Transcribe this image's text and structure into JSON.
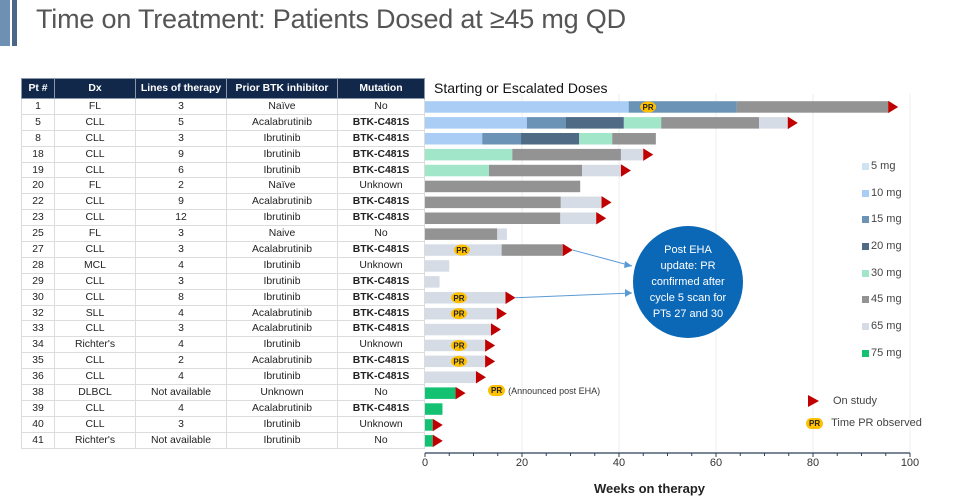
{
  "slide": {
    "title": "Time on Treatment: Patients Dosed at ≥45 mg QD"
  },
  "table": {
    "headers": [
      "Pt #",
      "Dx",
      "Lines of therapy",
      "Prior BTK inhibitor",
      "Mutation"
    ],
    "rows": [
      [
        "1",
        "FL",
        "3",
        "Naïve",
        "No"
      ],
      [
        "5",
        "CLL",
        "5",
        "Acalabrutinib",
        "BTK-C481S"
      ],
      [
        "8",
        "CLL",
        "3",
        "Ibrutinib",
        "BTK-C481S"
      ],
      [
        "18",
        "CLL",
        "9",
        "Ibrutinib",
        "BTK-C481S"
      ],
      [
        "19",
        "CLL",
        "6",
        "Ibrutinib",
        "BTK-C481S"
      ],
      [
        "20",
        "FL",
        "2",
        "Naïve",
        "Unknown"
      ],
      [
        "22",
        "CLL",
        "9",
        "Acalabrutinib",
        "BTK-C481S"
      ],
      [
        "23",
        "CLL",
        "12",
        "Ibrutinib",
        "BTK-C481S"
      ],
      [
        "25",
        "FL",
        "3",
        "Naive",
        "No"
      ],
      [
        "27",
        "CLL",
        "3",
        "Acalabrutinib",
        "BTK-C481S"
      ],
      [
        "28",
        "MCL",
        "4",
        "Ibrutinib",
        "Unknown"
      ],
      [
        "29",
        "CLL",
        "3",
        "Ibrutinib",
        "BTK-C481S"
      ],
      [
        "30",
        "CLL",
        "8",
        "Ibrutinib",
        "BTK-C481S"
      ],
      [
        "32",
        "SLL",
        "4",
        "Acalabrutinib",
        "BTK-C481S"
      ],
      [
        "33",
        "CLL",
        "3",
        "Acalabrutinib",
        "BTK-C481S"
      ],
      [
        "34",
        "Richter's",
        "4",
        "Ibrutinib",
        "Unknown"
      ],
      [
        "35",
        "CLL",
        "2",
        "Acalabrutinib",
        "BTK-C481S"
      ],
      [
        "36",
        "CLL",
        "4",
        "Ibrutinib",
        "BTK-C481S"
      ],
      [
        "38",
        "DLBCL",
        "Not available",
        "Unknown",
        "No"
      ],
      [
        "39",
        "CLL",
        "4",
        "Acalabrutinib",
        "BTK-C481S"
      ],
      [
        "40",
        "CLL",
        "3",
        "Ibrutinib",
        "Unknown"
      ],
      [
        "41",
        "Richter's",
        "Not available",
        "Ibrutinib",
        "No"
      ]
    ]
  },
  "annotations": {
    "callout": "Post EHA update: PR confirmed after cycle 5 scan for PTs 27 and 30",
    "announced": "(Announced post EHA)",
    "pr_label": "PR"
  },
  "chart_data": {
    "type": "bar",
    "orientation": "horizontal-stacked",
    "title": "Starting or Escalated Doses",
    "xlabel": "Weeks on therapy",
    "ylabel": "",
    "xlim": [
      0,
      100
    ],
    "xticks": [
      0,
      20,
      40,
      60,
      80,
      100
    ],
    "grid": true,
    "legend_placement": "right",
    "doses": [
      {
        "name": "5 mg",
        "color": "#cfe3f3"
      },
      {
        "name": "10 mg",
        "color": "#a9cdf5"
      },
      {
        "name": "15 mg",
        "color": "#6b93b5"
      },
      {
        "name": "20 mg",
        "color": "#4e6a85"
      },
      {
        "name": "30 mg",
        "color": "#a2e6c9"
      },
      {
        "name": "45 mg",
        "color": "#939393"
      },
      {
        "name": "65 mg",
        "color": "#d6dce5"
      },
      {
        "name": "75 mg",
        "color": "#12c172"
      }
    ],
    "markers": {
      "on_study": {
        "label": "On study",
        "color": "#c00000"
      },
      "pr": {
        "label": "Time PR observed",
        "color": "#ffc000"
      }
    },
    "patients": [
      {
        "pt": "1",
        "segments": [
          [
            "10 mg",
            0,
            42
          ],
          [
            "15 mg",
            42,
            64.3
          ],
          [
            "45 mg",
            64.3,
            95.5
          ]
        ],
        "on_study": true,
        "pr_week": 46
      },
      {
        "pt": "5",
        "segments": [
          [
            "10 mg",
            0,
            21
          ],
          [
            "15 mg",
            21,
            29
          ],
          [
            "20 mg",
            29,
            41
          ],
          [
            "30 mg",
            41,
            48.7
          ],
          [
            "45 mg",
            48.7,
            68.9
          ],
          [
            "65 mg",
            68.9,
            74.8
          ]
        ],
        "on_study": true,
        "pr_week": null
      },
      {
        "pt": "8",
        "segments": [
          [
            "10 mg",
            0,
            11.8
          ],
          [
            "15 mg",
            11.8,
            19.8
          ],
          [
            "20 mg",
            19.8,
            31.8
          ],
          [
            "30 mg",
            31.8,
            38.6
          ],
          [
            "45 mg",
            38.6,
            47.6
          ]
        ],
        "on_study": false,
        "pr_week": null
      },
      {
        "pt": "18",
        "segments": [
          [
            "30 mg",
            0,
            18
          ],
          [
            "45 mg",
            18,
            40.4
          ],
          [
            "65 mg",
            40.4,
            45
          ]
        ],
        "on_study": true,
        "pr_week": null
      },
      {
        "pt": "19",
        "segments": [
          [
            "30 mg",
            0,
            13.2
          ],
          [
            "45 mg",
            13.2,
            32.4
          ],
          [
            "65 mg",
            32.4,
            40.4
          ]
        ],
        "on_study": true,
        "pr_week": null
      },
      {
        "pt": "20",
        "segments": [
          [
            "45 mg",
            0,
            32
          ]
        ],
        "on_study": false,
        "pr_week": null
      },
      {
        "pt": "22",
        "segments": [
          [
            "45 mg",
            0,
            28
          ],
          [
            "65 mg",
            28,
            36.4
          ]
        ],
        "on_study": true,
        "pr_week": null
      },
      {
        "pt": "23",
        "segments": [
          [
            "45 mg",
            0,
            27.9
          ],
          [
            "65 mg",
            27.9,
            35.3
          ]
        ],
        "on_study": true,
        "pr_week": null
      },
      {
        "pt": "25",
        "segments": [
          [
            "45 mg",
            0,
            14.9
          ],
          [
            "65 mg",
            14.9,
            16.9
          ]
        ],
        "on_study": false,
        "pr_week": null
      },
      {
        "pt": "27",
        "segments": [
          [
            "65 mg",
            0,
            15.8
          ],
          [
            "45 mg",
            15.8,
            28.4
          ]
        ],
        "on_study": true,
        "pr_week": 7.6
      },
      {
        "pt": "28",
        "segments": [
          [
            "65 mg",
            0,
            5
          ]
        ],
        "on_study": false,
        "pr_week": null
      },
      {
        "pt": "29",
        "segments": [
          [
            "65 mg",
            0,
            3
          ]
        ],
        "on_study": false,
        "pr_week": null
      },
      {
        "pt": "30",
        "segments": [
          [
            "65 mg",
            0,
            16.6
          ]
        ],
        "on_study": true,
        "pr_week": 7
      },
      {
        "pt": "32",
        "segments": [
          [
            "65 mg",
            0,
            14.8
          ]
        ],
        "on_study": true,
        "pr_week": 7
      },
      {
        "pt": "33",
        "segments": [
          [
            "65 mg",
            0,
            13.6
          ]
        ],
        "on_study": true,
        "pr_week": null
      },
      {
        "pt": "34",
        "segments": [
          [
            "65 mg",
            0,
            12.4
          ]
        ],
        "on_study": true,
        "pr_week": 7
      },
      {
        "pt": "35",
        "segments": [
          [
            "65 mg",
            0,
            12.4
          ]
        ],
        "on_study": true,
        "pr_week": 7
      },
      {
        "pt": "36",
        "segments": [
          [
            "65 mg",
            0,
            10.5
          ]
        ],
        "on_study": true,
        "pr_week": null
      },
      {
        "pt": "38",
        "segments": [
          [
            "75 mg",
            0,
            6.3
          ]
        ],
        "on_study": true,
        "pr_week": 14.8
      },
      {
        "pt": "39",
        "segments": [
          [
            "75 mg",
            0,
            3.6
          ]
        ],
        "on_study": false,
        "pr_week": null
      },
      {
        "pt": "40",
        "segments": [
          [
            "75 mg",
            0,
            1.6
          ]
        ],
        "on_study": true,
        "pr_week": null
      },
      {
        "pt": "41",
        "segments": [
          [
            "75 mg",
            0,
            1.6
          ]
        ],
        "on_study": true,
        "pr_week": null
      }
    ]
  }
}
